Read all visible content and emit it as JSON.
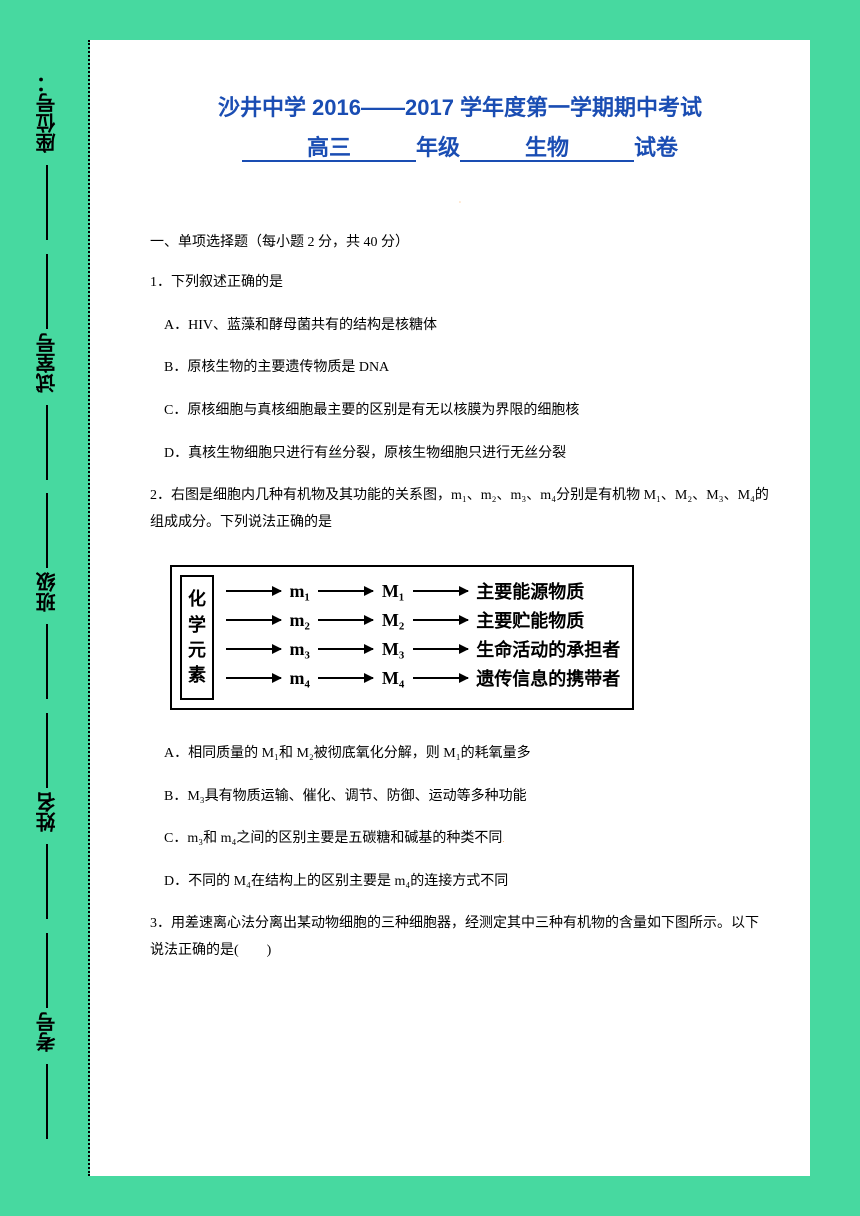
{
  "colors": {
    "background": "#47d9a0",
    "paper": "#ffffff",
    "title": "#1a4db3",
    "text": "#000000",
    "accent": "#ff9933"
  },
  "sidebar": {
    "items": [
      {
        "label": "座位号："
      },
      {
        "label": "试室号"
      },
      {
        "label": "班级"
      },
      {
        "label": "姓名"
      },
      {
        "label": "考号"
      }
    ]
  },
  "title": {
    "main": "沙井中学 2016——2017 学年度第一学期期中考试",
    "sub_grade": "高三",
    "sub_grade_label": "年级",
    "sub_subject": "生物",
    "sub_exam": "试卷"
  },
  "section1": {
    "header": "一、单项选择题（每小题 2 分，共 40 分）"
  },
  "q1": {
    "text": "1．下列叙述正确的是",
    "optA": "A．HIV、蓝藻和酵母菌共有的结构是核糖体",
    "optB": "B．原核生物的主要遗传物质是 DNA",
    "optC": "C．原核细胞与真核细胞最主要的区别是有无以核膜为界限的细胞核",
    "optD": "D．真核生物细胞只进行有丝分裂，原核生物细胞只进行无丝分裂"
  },
  "q2": {
    "text": "2．右图是细胞内几种有机物及其功能的关系图，m₁、m₂、m₃、m₄分别是有机物 M₁、M₂、M₃、M₄的组成成分。下列说法正确的是",
    "diagram": {
      "left_label": "化学元素",
      "rows": [
        {
          "m": "m₁",
          "M": "M₁",
          "desc": "主要能源物质"
        },
        {
          "m": "m₂",
          "M": "M₂",
          "desc": "主要贮能物质"
        },
        {
          "m": "m₃",
          "M": "M₃",
          "desc": "生命活动的承担者"
        },
        {
          "m": "m₄",
          "M": "M₄",
          "desc": "遗传信息的携带者"
        }
      ]
    },
    "optA": "A．相同质量的 M₁和 M₂被彻底氧化分解，则 M₁的耗氧量多",
    "optB": "B．M₃具有物质运输、催化、调节、防御、运动等多种功能",
    "optC": "C．m₃和 m₄之间的区别主要是五碳糖和碱基的种类不同",
    "optD": "D．不同的 M₄在结构上的区别主要是 m₄的连接方式不同"
  },
  "q3": {
    "text": "3．用差速离心法分离出某动物细胞的三种细胞器，经测定其中三种有机物的含量如下图所示。以下说法正确的是(　　)"
  }
}
